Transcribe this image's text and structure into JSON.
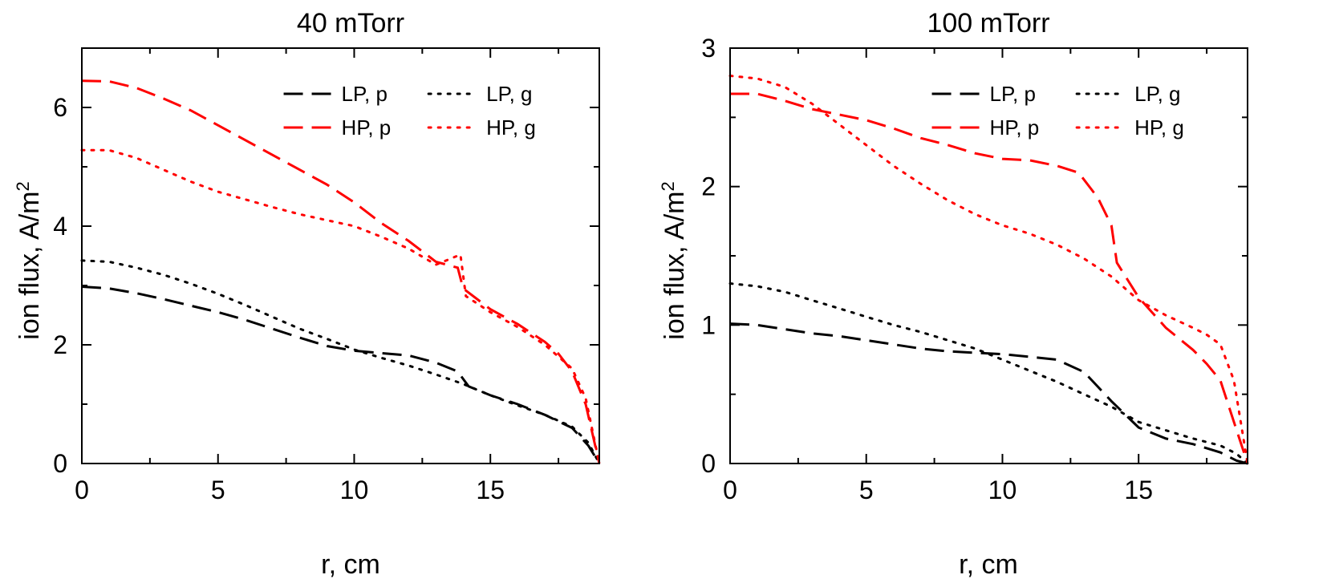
{
  "chart_data": [
    {
      "type": "line",
      "title": "40 mTorr",
      "xlabel": "r, cm",
      "ylabel_main": "ion flux, A/m",
      "ylabel_sup": "2",
      "xlim": [
        0,
        19
      ],
      "ylim": [
        0,
        7
      ],
      "xticks": [
        0,
        5,
        10,
        15
      ],
      "yticks": [
        0,
        2,
        4,
        6
      ],
      "legend_position": "top-right",
      "series": [
        {
          "name": "LP, p",
          "color": "#000000",
          "dash": "dashed",
          "x": [
            0,
            1,
            2,
            3,
            4,
            5,
            6,
            7,
            8,
            9,
            10,
            11,
            12,
            13,
            13.8,
            14.2,
            15,
            16,
            17,
            18,
            18.6,
            19
          ],
          "y": [
            2.98,
            2.95,
            2.87,
            2.77,
            2.66,
            2.55,
            2.42,
            2.27,
            2.12,
            1.98,
            1.9,
            1.86,
            1.82,
            1.7,
            1.55,
            1.3,
            1.15,
            1.0,
            0.82,
            0.6,
            0.3,
            0.0
          ]
        },
        {
          "name": "LP, g",
          "color": "#000000",
          "dash": "dotted",
          "x": [
            0,
            1,
            2,
            3,
            4,
            5,
            6,
            7,
            8,
            9,
            10,
            11,
            12,
            13,
            14,
            15,
            16,
            17,
            18,
            18.6,
            19
          ],
          "y": [
            3.42,
            3.4,
            3.3,
            3.18,
            3.03,
            2.86,
            2.67,
            2.47,
            2.27,
            2.1,
            1.92,
            1.78,
            1.65,
            1.5,
            1.34,
            1.15,
            0.98,
            0.82,
            0.62,
            0.35,
            0.0
          ]
        },
        {
          "name": "HP, p",
          "color": "#ff0000",
          "dash": "dashed",
          "x": [
            0,
            1,
            2,
            3,
            4,
            5,
            6,
            7,
            8,
            9,
            10,
            11,
            12,
            13,
            13.8,
            14.0,
            15,
            16,
            17,
            17.5,
            18,
            18.5,
            19
          ],
          "y": [
            6.45,
            6.44,
            6.33,
            6.15,
            5.95,
            5.7,
            5.45,
            5.2,
            4.95,
            4.7,
            4.4,
            4.05,
            3.75,
            3.4,
            3.3,
            2.95,
            2.6,
            2.35,
            2.05,
            1.85,
            1.55,
            1.0,
            0.0
          ]
        },
        {
          "name": "HP, g",
          "color": "#ff0000",
          "dash": "dotted",
          "x": [
            0,
            1,
            2,
            3,
            4,
            5,
            6,
            7,
            8,
            9,
            10,
            11,
            12,
            13,
            13.9,
            14.1,
            15,
            16,
            17,
            17.5,
            18,
            18.5,
            19
          ],
          "y": [
            5.28,
            5.28,
            5.15,
            4.95,
            4.75,
            4.58,
            4.45,
            4.32,
            4.2,
            4.1,
            4.0,
            3.82,
            3.62,
            3.35,
            3.52,
            2.82,
            2.55,
            2.3,
            2.0,
            1.8,
            1.6,
            1.1,
            0.0
          ]
        }
      ]
    },
    {
      "type": "line",
      "title": "100 mTorr",
      "xlabel": "r, cm",
      "ylabel_main": "ion flux, A/m",
      "ylabel_sup": "2",
      "xlim": [
        0,
        19
      ],
      "ylim": [
        0,
        3
      ],
      "xticks": [
        0,
        5,
        10,
        15
      ],
      "yticks": [
        0,
        1,
        2,
        3
      ],
      "legend_position": "top-right",
      "series": [
        {
          "name": "LP, p",
          "color": "#000000",
          "dash": "dashed",
          "x": [
            0,
            1,
            2,
            3,
            4,
            5,
            6,
            7,
            8,
            9,
            10,
            11,
            12,
            13,
            14,
            15,
            16,
            17,
            18,
            18.6,
            19
          ],
          "y": [
            1.01,
            1.0,
            0.97,
            0.94,
            0.92,
            0.89,
            0.86,
            0.83,
            0.81,
            0.8,
            0.79,
            0.77,
            0.75,
            0.66,
            0.45,
            0.26,
            0.18,
            0.14,
            0.08,
            0.02,
            0.0
          ]
        },
        {
          "name": "LP, g",
          "color": "#000000",
          "dash": "dotted",
          "x": [
            0,
            1,
            2,
            3,
            4,
            5,
            6,
            7,
            8,
            9,
            10,
            11,
            12,
            13,
            14,
            15,
            16,
            17,
            18,
            18.6,
            19
          ],
          "y": [
            1.3,
            1.28,
            1.24,
            1.18,
            1.12,
            1.06,
            1.0,
            0.95,
            0.89,
            0.83,
            0.75,
            0.67,
            0.59,
            0.5,
            0.41,
            0.3,
            0.24,
            0.18,
            0.13,
            0.07,
            0.0
          ]
        },
        {
          "name": "HP, p",
          "color": "#ff0000",
          "dash": "dashed",
          "x": [
            0,
            1,
            2,
            3,
            4,
            5,
            6,
            7,
            8,
            9,
            10,
            11,
            12,
            12.8,
            13.5,
            14.0,
            14.2,
            15,
            16,
            17,
            17.5,
            18,
            18.5,
            19
          ],
          "y": [
            2.67,
            2.67,
            2.62,
            2.56,
            2.52,
            2.48,
            2.42,
            2.35,
            2.3,
            2.24,
            2.2,
            2.19,
            2.15,
            2.1,
            1.92,
            1.72,
            1.45,
            1.2,
            0.98,
            0.82,
            0.72,
            0.6,
            0.3,
            0.0
          ]
        },
        {
          "name": "HP, g",
          "color": "#ff0000",
          "dash": "dotted",
          "x": [
            0,
            1,
            2,
            3,
            4,
            5,
            6,
            7,
            8,
            9,
            10,
            11,
            12,
            13,
            14,
            15,
            16,
            17,
            17.5,
            18,
            18.5,
            19
          ],
          "y": [
            2.8,
            2.78,
            2.72,
            2.6,
            2.45,
            2.3,
            2.15,
            2.02,
            1.9,
            1.8,
            1.72,
            1.66,
            1.58,
            1.48,
            1.35,
            1.18,
            1.07,
            0.98,
            0.93,
            0.86,
            0.6,
            0.0
          ]
        }
      ]
    }
  ]
}
